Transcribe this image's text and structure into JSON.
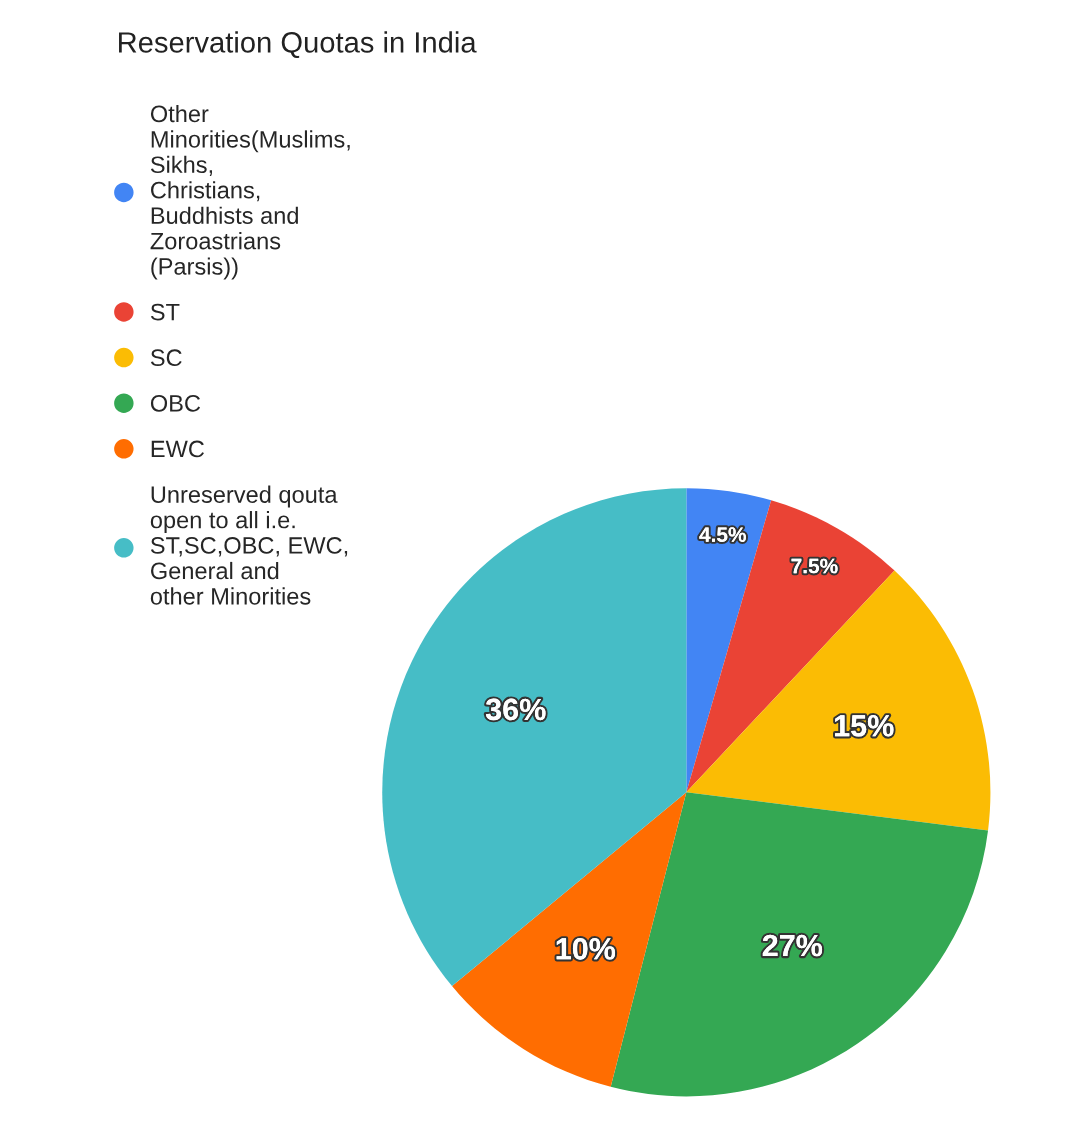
{
  "chart_data": {
    "type": "pie",
    "title": "Reservation Quotas in India",
    "categories": [
      "Other Minorities(Muslims, Sikhs, Christians, Buddhists and Zoroastrians (Parsis))",
      "ST",
      "SC",
      "OBC",
      "EWC",
      "Unreserved qouta open to all i.e. ST,SC,OBC, EWC, General and other Minorities"
    ],
    "values": [
      4.5,
      7.5,
      15,
      27,
      10,
      36
    ],
    "value_labels": [
      "4.5%",
      "7.5%",
      "15%",
      "27%",
      "10%",
      "36%"
    ],
    "colors": [
      "#4285f4",
      "#ea4335",
      "#fbbc04",
      "#34a853",
      "#ff6d01",
      "#46bdc6"
    ],
    "legend": "left"
  }
}
